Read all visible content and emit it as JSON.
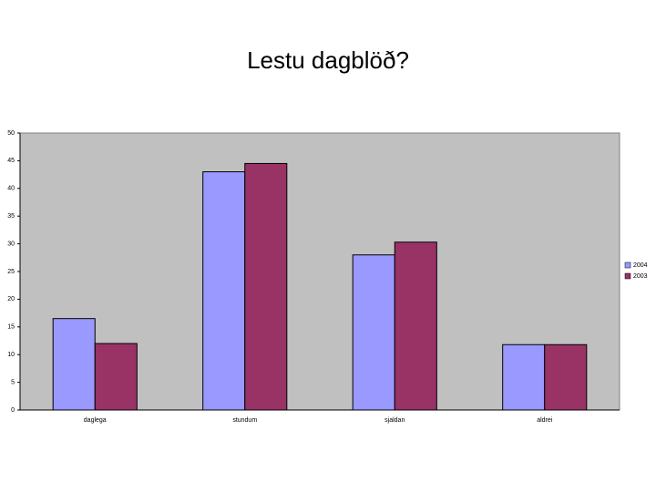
{
  "chart_data": {
    "type": "bar",
    "title": "Lestu dagblöð?",
    "categories": [
      "daglega",
      "stundum",
      "sjaldan",
      "aldrei"
    ],
    "series": [
      {
        "name": "2004",
        "color": "#9999ff",
        "values": [
          16.5,
          43,
          28,
          11.8
        ]
      },
      {
        "name": "2003",
        "color": "#993366",
        "values": [
          12,
          44.5,
          30.3,
          11.8
        ]
      }
    ],
    "ylim": [
      0,
      50
    ],
    "yticks": [
      0,
      5,
      10,
      15,
      20,
      25,
      30,
      35,
      40,
      45,
      50
    ],
    "legend": "right"
  }
}
